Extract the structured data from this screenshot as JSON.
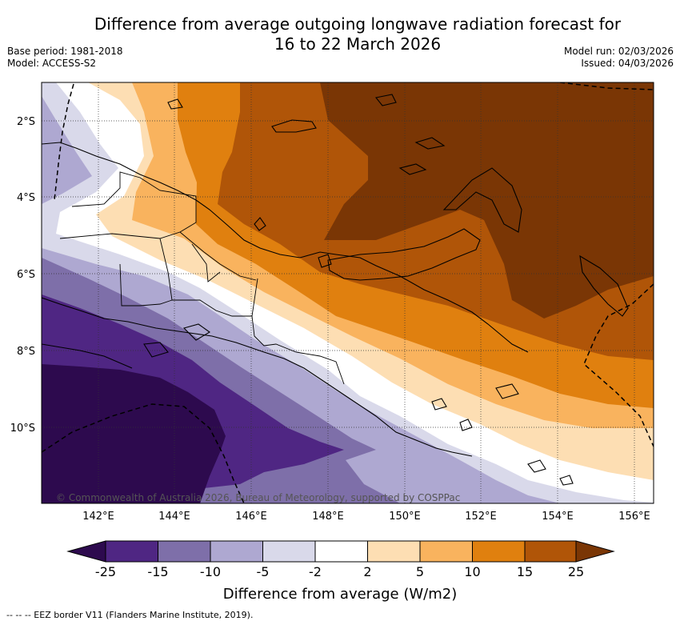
{
  "title": {
    "line1": "Difference from average outgoing longwave radiation forecast for",
    "line2": "16 to 22 March 2026"
  },
  "meta_left": {
    "base_period": "Base period: 1981-2018",
    "model": "Model: ACCESS-S2"
  },
  "meta_right": {
    "model_run": "Model run: 02/03/2026",
    "issued": "Issued: 04/03/2026"
  },
  "map": {
    "lat_labels": [
      "2°S",
      "4°S",
      "6°S",
      "8°S",
      "10°S"
    ],
    "lon_labels": [
      "142°E",
      "144°E",
      "146°E",
      "148°E",
      "150°E",
      "152°E",
      "154°E",
      "156°E"
    ],
    "copyright": "© Commonwealth of Australia 2026, Bureau of Meteorology, supported by COSPPac"
  },
  "colorbar": {
    "label": "Difference from average (W/m2)",
    "ticks": [
      "-25",
      "-15",
      "-10",
      "-5",
      "-2",
      "2",
      "5",
      "10",
      "15",
      "25"
    ],
    "colors": [
      "#2d0a4e",
      "#4f2683",
      "#7e6fa9",
      "#aea8d1",
      "#d9d9ea",
      "#ffffff",
      "#fddeb3",
      "#f9b35e",
      "#e0800f",
      "#b05508",
      "#7a3605"
    ]
  },
  "footer": "-- -- -- EEZ border V11 (Flanders Marine Institute, 2019)."
}
